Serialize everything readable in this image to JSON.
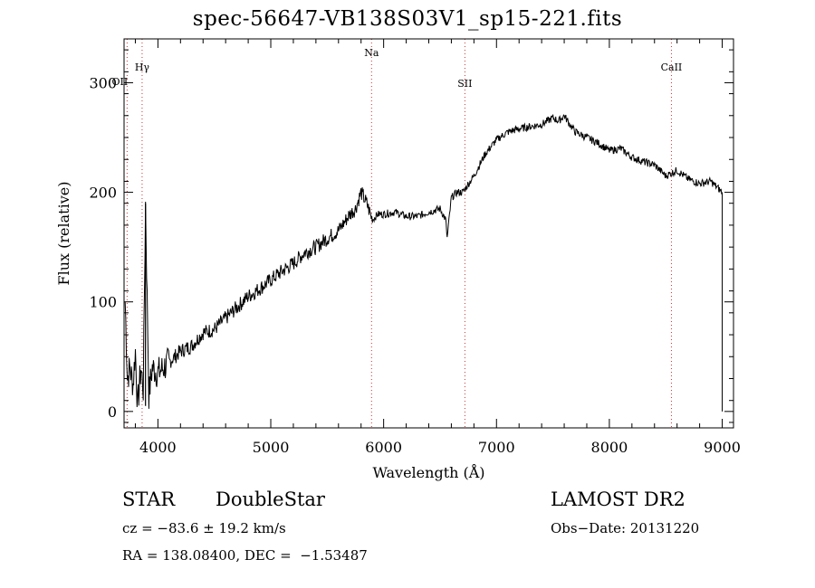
{
  "title": "spec-56647-VB138S03V1_sp15-221.fits",
  "chart_data": {
    "type": "line",
    "xlabel": "Wavelength (Å)",
    "ylabel": "Flux (relative)",
    "xlim": [
      3700,
      9100
    ],
    "ylim": [
      -15,
      340
    ],
    "xticks": [
      4000,
      5000,
      6000,
      7000,
      8000,
      9000
    ],
    "yticks": [
      0,
      100,
      200,
      300
    ],
    "lines": [
      {
        "label": "Hγ",
        "x": 3860
      },
      {
        "label": "OII",
        "x": 3727
      },
      {
        "label": "Na",
        "x": 5893
      },
      {
        "label": "SII",
        "x": 6720
      },
      {
        "label": "CaII",
        "x": 8550
      }
    ],
    "series": [
      {
        "x": [
          3710,
          3730,
          3750,
          3780,
          3800,
          3820,
          3850,
          3870,
          3890,
          3920,
          3950,
          4000,
          4100,
          4200,
          4300,
          4400,
          4500,
          4600,
          4700,
          4800,
          4900,
          5000,
          5100,
          5200,
          5300,
          5400,
          5500,
          5600,
          5700,
          5750,
          5800,
          5850,
          5900,
          5950,
          6000,
          6100,
          6200,
          6300,
          6400,
          6500,
          6550,
          6563,
          6600,
          6650,
          6700,
          6800,
          6900,
          7000,
          7100,
          7200,
          7300,
          7400,
          7500,
          7550,
          7600,
          7650,
          7700,
          7800,
          7900,
          8000,
          8100,
          8200,
          8300,
          8400,
          8500,
          8600,
          8700,
          8800,
          8900,
          9000
        ],
        "y": [
          100,
          30,
          40,
          25,
          55,
          5,
          40,
          20,
          190,
          15,
          40,
          35,
          45,
          55,
          60,
          72,
          75,
          85,
          95,
          105,
          112,
          120,
          128,
          135,
          145,
          150,
          158,
          165,
          180,
          185,
          200,
          190,
          175,
          180,
          180,
          182,
          178,
          178,
          182,
          185,
          175,
          158,
          195,
          200,
          200,
          215,
          235,
          248,
          255,
          258,
          260,
          262,
          268,
          265,
          270,
          262,
          255,
          250,
          245,
          238,
          240,
          232,
          228,
          225,
          215,
          220,
          212,
          208,
          210,
          200
        ]
      }
    ]
  },
  "info": {
    "class_label": "STAR",
    "subclass": "DoubleStar",
    "survey": "LAMOST DR2",
    "cz": "cz = −83.6 ± 19.2 km/s",
    "obs_date": "Obs−Date: 20131220",
    "coords": "RA = 138.08400, DEC =  −1.53487"
  }
}
